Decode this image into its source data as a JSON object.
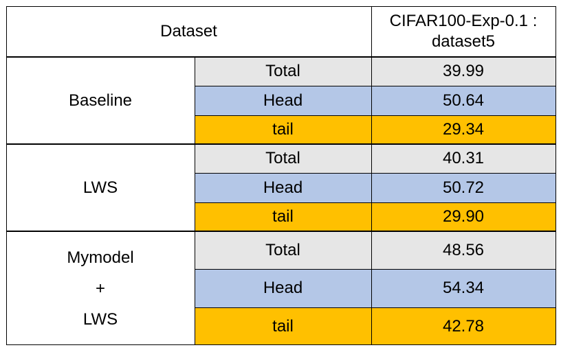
{
  "header": {
    "dataset_label": "Dataset",
    "column_line1": "CIFAR100-Exp-0.1 :",
    "column_line2": "dataset5"
  },
  "groups": [
    {
      "name": "Baseline",
      "rows": [
        {
          "label": "Total",
          "value": "39.99"
        },
        {
          "label": "Head",
          "value": "50.64"
        },
        {
          "label": "tail",
          "value": "29.34"
        }
      ]
    },
    {
      "name": "LWS",
      "rows": [
        {
          "label": "Total",
          "value": "40.31"
        },
        {
          "label": "Head",
          "value": "50.72"
        },
        {
          "label": "tail",
          "value": "29.90"
        }
      ]
    },
    {
      "name_lines": [
        "Mymodel",
        "+",
        "LWS"
      ],
      "rows": [
        {
          "label": "Total",
          "value": "48.56"
        },
        {
          "label": "Head",
          "value": "54.34"
        },
        {
          "label": "tail",
          "value": "42.78"
        }
      ]
    }
  ],
  "colors": {
    "total": "#e6e6e6",
    "head": "#b4c7e7",
    "tail": "#ffc000"
  }
}
